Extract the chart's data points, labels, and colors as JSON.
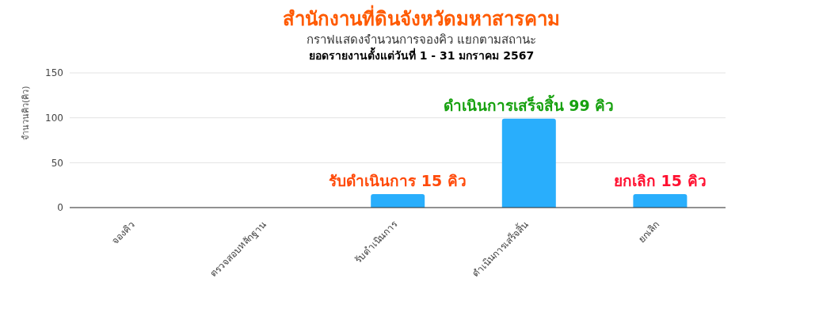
{
  "chart_data": {
    "type": "bar",
    "title": "สำนักงานที่ดินจังหวัดมหาสารคาม",
    "subtitle": "กราฟแสดงจำนวนการจองคิว แยกตามสถานะ",
    "ylabel": "จำนวนคิว(คิว)",
    "categories": [
      "จองคิว",
      "ตรวจสอบหลักฐาน",
      "รับดำเนินการ",
      "ดำเนินการเสร็จสิ้น",
      "ยกเลิก"
    ],
    "values": [
      0,
      0,
      15,
      99,
      15
    ],
    "color": "#29aefc",
    "ylim": [
      0,
      150
    ],
    "yticks": [
      0,
      50,
      100,
      150
    ],
    "grid": "y",
    "annotations": [
      "ยอดรายงานตั้งแต่วันที่ 1 - 31 มกราคม 2567",
      {
        "text": "รับดำเนินการ 15 คิว",
        "x": "รับดำเนินการ",
        "y": 15
      },
      {
        "text": "ดำเนินการเสร็จสิ้น 99 คิว",
        "x": "ดำเนินการเสร็จสิ้น",
        "y": 99
      },
      {
        "text": "ยกเลิก 15 คิว",
        "x": "ยกเลิก",
        "y": 15
      }
    ]
  }
}
